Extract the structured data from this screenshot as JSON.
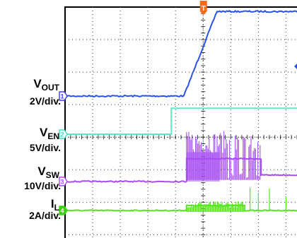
{
  "chart_data": {
    "type": "line",
    "trigger_marker": "T",
    "x_divisions": 10,
    "y_divisions": 8,
    "grid": true,
    "colors": {
      "background": "#ffffff",
      "frame": "#000000",
      "grid": "#333333",
      "trigger": "#ff6a1a"
    },
    "channels": [
      {
        "id": "1",
        "name": "V",
        "name_sub": "OUT",
        "scale": "2V/div.",
        "color": "#2a52e8",
        "marker_color": "#3a3aff"
      },
      {
        "id": "2",
        "name": "V",
        "name_sub": "EN",
        "scale": "5V/div.",
        "color": "#5ee8c8",
        "marker_color": "#40e0c0"
      },
      {
        "id": "3",
        "name": "V",
        "name_sub": "SW",
        "scale": "10V/div.",
        "color": "#a64df0",
        "marker_color": "#b040ff"
      },
      {
        "id": "4",
        "name": "I",
        "name_sub": "L",
        "scale": "2A/div.",
        "color": "#55e61a",
        "marker_color": "#3fd010"
      }
    ],
    "series": [
      {
        "name": "VOUT",
        "x_div": [
          0,
          4.3,
          5.5,
          10
        ],
        "y_level": [
          0,
          0,
          2.6,
          2.6
        ]
      },
      {
        "name": "VEN",
        "x_div": [
          0,
          3.85,
          3.85,
          10
        ],
        "y_level": [
          0,
          0,
          0.8,
          0.8
        ]
      },
      {
        "name": "VSW",
        "x_div": [
          0,
          4.4,
          4.4,
          7.1,
          7.1,
          10
        ],
        "y_level": [
          0,
          0,
          0.7,
          0.7,
          0.2,
          0.2
        ],
        "burst_x_div": [
          4.4,
          7.1
        ],
        "burst_peak_div": 1.5
      },
      {
        "name": "IL",
        "x_div": [
          0,
          4.4,
          4.4,
          6.5,
          6.5,
          10
        ],
        "y_level": [
          0,
          0,
          0.15,
          0.15,
          0,
          0
        ],
        "burst_x_div": [
          4.4,
          6.5
        ],
        "spikes_x_div": [
          6.7,
          7.0,
          7.4,
          8.0,
          8.6,
          9.2,
          9.6
        ],
        "spike_peak_div": 0.8
      }
    ]
  }
}
